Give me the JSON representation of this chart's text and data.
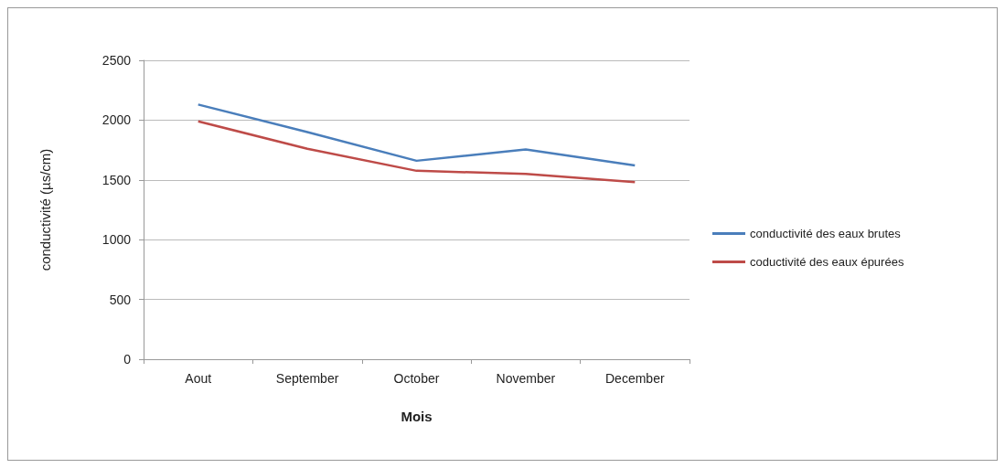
{
  "chart_data": {
    "type": "line",
    "xlabel": "Mois",
    "ylabel": "conductivité (µs/cm)",
    "categories": [
      "Aout",
      "September",
      "October",
      "November",
      "December"
    ],
    "series": [
      {
        "name": "conductivité des eaux brutes",
        "color": "#4a7ebb",
        "values": [
          2130,
          1900,
          1660,
          1755,
          1620
        ]
      },
      {
        "name": "coductivité des eaux épurées",
        "color": "#be4b48",
        "values": [
          1990,
          1760,
          1576,
          1550,
          1482
        ]
      }
    ],
    "ylim": [
      0,
      2500
    ],
    "yticks": [
      0,
      500,
      1000,
      1500,
      2000,
      2500
    ],
    "grid": "y",
    "legend": "right",
    "marker": "none",
    "line_style": "solid"
  }
}
